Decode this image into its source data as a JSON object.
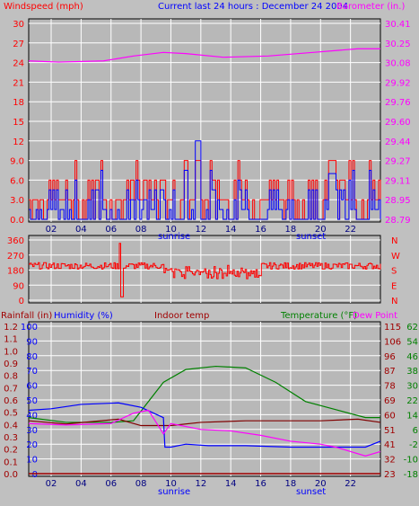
{
  "header": {
    "windspeed_label": "Windspeed (mph)",
    "title": "Current last 24 hours : December 24 2004",
    "barometer_label": "Barometer (in.)"
  },
  "colors": {
    "background": "#c0c0c0",
    "plot_bg": "#b8b8b8",
    "grid": "#ffffff",
    "frame": "#000000",
    "red": "#ff0000",
    "blue": "#0000ff",
    "magenta": "#ff00ff",
    "green": "#008000",
    "maroon": "#800000",
    "darkred": "#a00000"
  },
  "x_axis": {
    "hours": [
      "02",
      "04",
      "06",
      "08",
      "10",
      "12",
      "14",
      "16",
      "18",
      "20",
      "22"
    ],
    "sunrise_label": "sunrise",
    "sunset_label": "sunset"
  },
  "chart_data": [
    {
      "type": "line",
      "name": "wind-barometer",
      "left_axis": {
        "label": "Windspeed (mph)",
        "ticks": [
          "30",
          "27",
          "24",
          "21",
          "18",
          "15",
          "12",
          "9.0",
          "6.0",
          "3.0",
          "0.0"
        ],
        "ylim": [
          0,
          30
        ]
      },
      "right_axis": {
        "label": "Barometer (in.)",
        "ticks": [
          "30.41",
          "30.25",
          "30.08",
          "29.92",
          "29.76",
          "29.60",
          "29.44",
          "29.27",
          "29.11",
          "28.95",
          "28.79"
        ],
        "ylim": [
          28.79,
          30.41
        ]
      },
      "x": {
        "range_hours": [
          0.5,
          24
        ]
      },
      "series": [
        {
          "id": "barometer",
          "color": "magenta",
          "points": [
            [
              0.5,
              30.1
            ],
            [
              2.5,
              30.09
            ],
            [
              5.5,
              30.1
            ],
            [
              7.5,
              30.14
            ],
            [
              9.5,
              30.17
            ],
            [
              11,
              30.16
            ],
            [
              13.5,
              30.13
            ],
            [
              16.5,
              30.14
            ],
            [
              19.5,
              30.17
            ],
            [
              22.5,
              30.2
            ],
            [
              24,
              30.2
            ]
          ]
        },
        {
          "id": "wind_gust",
          "color": "red",
          "range": [
            0,
            9
          ]
        },
        {
          "id": "wind_speed",
          "color": "blue",
          "range": [
            0,
            7
          ],
          "peak": 12
        }
      ]
    },
    {
      "type": "line",
      "name": "wind-direction",
      "left_axis": {
        "ticks": [
          "360",
          "270",
          "180",
          "90",
          "0"
        ],
        "ylim": [
          0,
          360
        ]
      },
      "right_axis": {
        "ticks": [
          "N",
          "W",
          "S",
          "E",
          "N"
        ]
      },
      "series": [
        {
          "id": "direction",
          "color": "red",
          "baseline": 205
        }
      ]
    },
    {
      "type": "line",
      "name": "rain-humidity-temp",
      "legend": {
        "rainfall": "Rainfall (in)",
        "humidity": "Humidity (%)",
        "indoor": "Indoor temp",
        "temperature": "Temperature (°F)",
        "dewpoint": "Dew Point"
      },
      "rain_axis": {
        "ticks": [
          "1.2",
          "1.1",
          "1.0",
          "0.9",
          "0.8",
          "0.7",
          "0.6",
          "0.5",
          "0.4",
          "0.3",
          "0.2",
          "0.1",
          "0.0"
        ]
      },
      "humidity_axis": {
        "ticks": [
          "100",
          "90",
          "80",
          "70",
          "60",
          "50",
          "40",
          "30",
          "20",
          "10",
          "0"
        ]
      },
      "indoor_axis": {
        "ticks": [
          "115",
          "106",
          "96",
          "87",
          "78",
          "69",
          "60",
          "51",
          "41",
          "32",
          "23"
        ]
      },
      "temp_axis": {
        "ticks": [
          "62",
          "54",
          "46",
          "38",
          "30",
          "22",
          "14",
          "6",
          "-2",
          "-10",
          "-18"
        ]
      },
      "series": [
        {
          "id": "temperature",
          "color": "green",
          "points": [
            [
              0.5,
              58
            ],
            [
              3,
              55
            ],
            [
              6,
              55
            ],
            [
              7.5,
              56
            ],
            [
              9.5,
              80
            ],
            [
              11,
              88
            ],
            [
              13,
              90
            ],
            [
              15,
              89
            ],
            [
              17,
              80
            ],
            [
              19,
              68
            ],
            [
              21,
              63
            ],
            [
              23,
              58
            ],
            [
              24,
              58
            ]
          ]
        },
        {
          "id": "indoor_temp",
          "color": "maroon",
          "points": [
            [
              0.5,
              56
            ],
            [
              3,
              54
            ],
            [
              6.5,
              57
            ],
            [
              8,
              53
            ],
            [
              10,
              53
            ],
            [
              12,
              55
            ],
            [
              15,
              56
            ],
            [
              20,
              56
            ],
            [
              22.5,
              57
            ],
            [
              24,
              55
            ]
          ]
        },
        {
          "id": "humidity",
          "color": "blue",
          "points": [
            [
              0.5,
              43
            ],
            [
              2,
              44
            ],
            [
              4,
              47
            ],
            [
              6.5,
              48
            ],
            [
              8,
              45
            ],
            [
              9.5,
              38
            ],
            [
              9.6,
              18
            ],
            [
              10,
              18
            ],
            [
              11,
              20
            ],
            [
              12.5,
              19
            ],
            [
              15,
              19
            ],
            [
              18,
              18
            ],
            [
              21,
              18
            ],
            [
              23,
              18
            ],
            [
              24,
              22
            ]
          ]
        },
        {
          "id": "dew_point",
          "color": "magenta",
          "points": [
            [
              0.5,
              34
            ],
            [
              3,
              33
            ],
            [
              6,
              34
            ],
            [
              7.5,
              41
            ],
            [
              8.5,
              43
            ],
            [
              9.5,
              27
            ],
            [
              10,
              34
            ],
            [
              12,
              30
            ],
            [
              14,
              29
            ],
            [
              16,
              26
            ],
            [
              18,
              22
            ],
            [
              20,
              20
            ],
            [
              21,
              18
            ],
            [
              23,
              12
            ],
            [
              24,
              15
            ]
          ]
        },
        {
          "id": "rainfall",
          "color": "darkred",
          "value": 0.0
        }
      ]
    }
  ]
}
